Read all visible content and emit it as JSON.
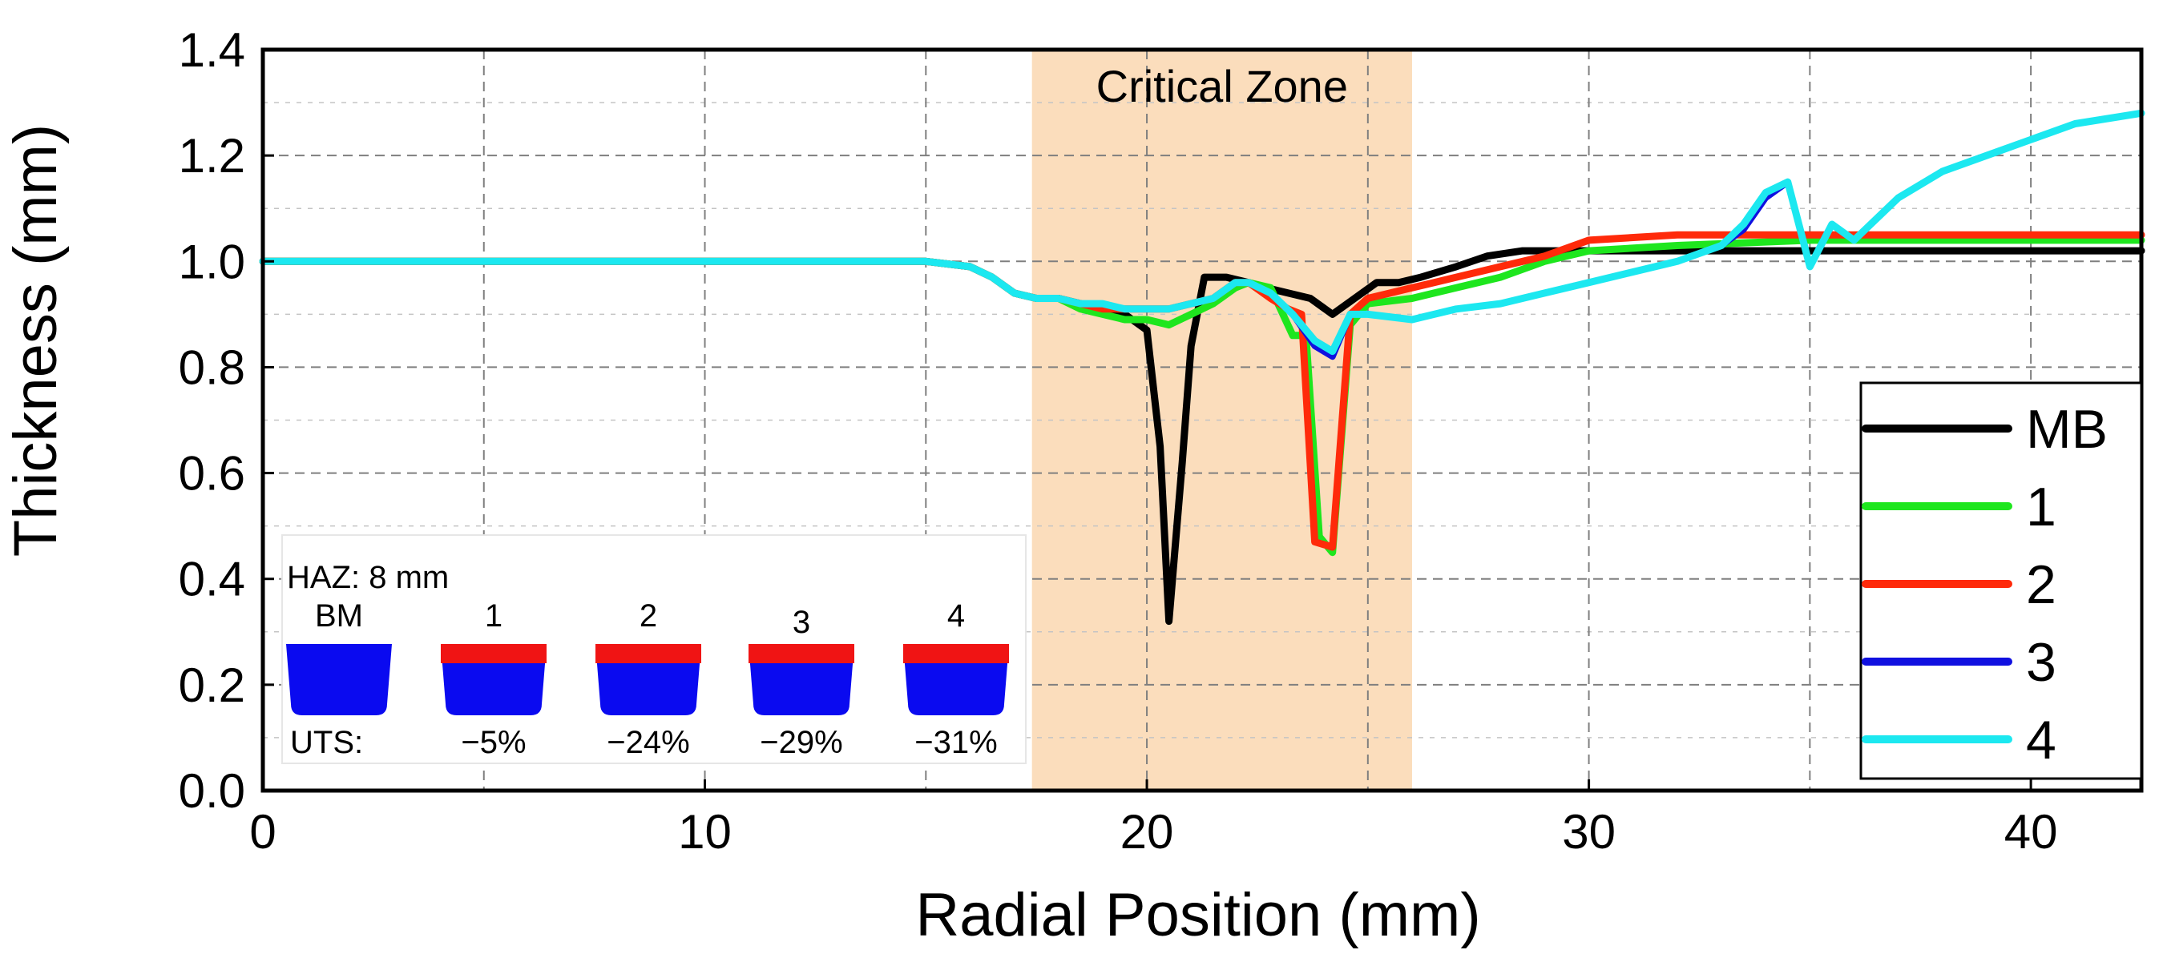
{
  "chart_data": {
    "type": "line",
    "xlabel": "Radial Position (mm)",
    "ylabel": "Thickness (mm)",
    "xlim": [
      0,
      42.5
    ],
    "ylim": [
      0,
      1.4
    ],
    "xticks": [
      0,
      10,
      20,
      30,
      40
    ],
    "yticks": [
      0.0,
      0.2,
      0.4,
      0.6,
      0.8,
      1.0,
      1.2,
      1.4
    ],
    "xtick_labels": [
      "0",
      "10",
      "20",
      "30",
      "40"
    ],
    "ytick_labels": [
      "0.0",
      "0.2",
      "0.4",
      "0.6",
      "0.8",
      "1.0",
      "1.2",
      "1.4"
    ],
    "grid": true,
    "legend_position": "bottom-right",
    "critical_zone": {
      "label": "Critical Zone",
      "x_start": 17.4,
      "x_end": 26.0,
      "color": "#fbd9b5"
    },
    "series": [
      {
        "name": "MB",
        "color": "#000000",
        "x": [
          0,
          15,
          16,
          16.5,
          17,
          17.5,
          18,
          18.5,
          19,
          19.5,
          20,
          20.3,
          20.5,
          20.8,
          21,
          21.3,
          21.8,
          22.3,
          22.7,
          23.2,
          23.7,
          24.2,
          24.7,
          25.2,
          25.7,
          26.2,
          27,
          27.7,
          28.5,
          30,
          33,
          42.5
        ],
        "y": [
          1.0,
          1.0,
          0.99,
          0.97,
          0.94,
          0.93,
          0.93,
          0.92,
          0.91,
          0.9,
          0.87,
          0.65,
          0.32,
          0.62,
          0.84,
          0.97,
          0.97,
          0.96,
          0.95,
          0.94,
          0.93,
          0.9,
          0.93,
          0.96,
          0.96,
          0.97,
          0.99,
          1.01,
          1.02,
          1.02,
          1.02,
          1.02
        ]
      },
      {
        "name": "1",
        "color": "#1ee61e",
        "x": [
          0,
          15,
          16,
          16.5,
          17,
          17.5,
          18,
          18.5,
          19,
          19.5,
          20,
          20.5,
          21,
          21.5,
          22,
          22.3,
          22.8,
          23.3,
          23.6,
          23.9,
          24.2,
          24.6,
          25,
          26,
          27,
          28,
          29,
          30,
          32,
          35,
          42.5
        ],
        "y": [
          1.0,
          1.0,
          0.99,
          0.97,
          0.94,
          0.93,
          0.93,
          0.91,
          0.9,
          0.89,
          0.89,
          0.88,
          0.9,
          0.92,
          0.95,
          0.96,
          0.95,
          0.86,
          0.86,
          0.48,
          0.45,
          0.88,
          0.92,
          0.93,
          0.95,
          0.97,
          1.0,
          1.02,
          1.03,
          1.04,
          1.04
        ]
      },
      {
        "name": "2",
        "color": "#ff2a0a",
        "x": [
          0,
          15,
          16,
          16.5,
          17,
          17.5,
          18,
          18.5,
          19,
          19.5,
          20,
          20.5,
          21,
          21.5,
          22,
          22.3,
          22.8,
          23.2,
          23.5,
          23.8,
          24.2,
          24.6,
          25,
          26,
          27,
          28,
          29,
          30,
          32,
          35,
          42.5
        ],
        "y": [
          1.0,
          1.0,
          0.99,
          0.97,
          0.94,
          0.93,
          0.93,
          0.92,
          0.91,
          0.91,
          0.91,
          0.91,
          0.92,
          0.93,
          0.96,
          0.96,
          0.93,
          0.91,
          0.9,
          0.47,
          0.46,
          0.9,
          0.93,
          0.95,
          0.97,
          0.99,
          1.01,
          1.04,
          1.05,
          1.05,
          1.05
        ]
      },
      {
        "name": "3",
        "color": "#1010e0",
        "x": [
          0,
          15,
          16,
          16.5,
          17,
          17.5,
          18,
          18.5,
          19,
          19.5,
          20,
          20.5,
          21,
          21.5,
          22,
          22.3,
          22.8,
          23.3,
          23.8,
          24.2,
          24.6,
          25,
          26,
          27,
          28,
          29,
          30,
          31,
          32,
          33,
          33.5,
          34,
          34.5,
          35,
          35.5,
          36,
          37,
          38,
          39,
          40,
          41,
          42.5
        ],
        "y": [
          1.0,
          1.0,
          0.99,
          0.97,
          0.94,
          0.93,
          0.93,
          0.92,
          0.92,
          0.91,
          0.91,
          0.91,
          0.92,
          0.93,
          0.96,
          0.96,
          0.94,
          0.9,
          0.84,
          0.82,
          0.9,
          0.9,
          0.89,
          0.91,
          0.92,
          0.94,
          0.96,
          0.98,
          1.0,
          1.03,
          1.06,
          1.12,
          1.15,
          0.99,
          1.07,
          1.04,
          1.12,
          1.17,
          1.2,
          1.23,
          1.26,
          1.28
        ]
      },
      {
        "name": "4",
        "color": "#1ce8f0",
        "x": [
          0,
          15,
          16,
          16.5,
          17,
          17.5,
          18,
          18.5,
          19,
          19.5,
          20,
          20.5,
          21,
          21.5,
          22,
          22.3,
          22.8,
          23.3,
          23.8,
          24.2,
          24.6,
          25,
          26,
          27,
          28,
          29,
          30,
          31,
          32,
          33,
          33.5,
          34,
          34.5,
          35,
          35.5,
          36,
          37,
          38,
          39,
          40,
          41,
          42.5
        ],
        "y": [
          1.0,
          1.0,
          0.99,
          0.97,
          0.94,
          0.93,
          0.93,
          0.92,
          0.92,
          0.91,
          0.91,
          0.91,
          0.92,
          0.93,
          0.96,
          0.96,
          0.94,
          0.9,
          0.85,
          0.83,
          0.9,
          0.9,
          0.89,
          0.91,
          0.92,
          0.94,
          0.96,
          0.98,
          1.0,
          1.03,
          1.07,
          1.13,
          1.15,
          0.99,
          1.07,
          1.04,
          1.12,
          1.17,
          1.2,
          1.23,
          1.26,
          1.28
        ]
      }
    ],
    "inset": {
      "haz_label": "HAZ: 8 mm",
      "uts_label": "UTS:",
      "samples": [
        {
          "name": "BM",
          "uts": ""
        },
        {
          "name": "1",
          "uts": "−5%"
        },
        {
          "name": "2",
          "uts": "−24%"
        },
        {
          "name": "3",
          "uts": "−29%"
        },
        {
          "name": "4",
          "uts": "−31%"
        }
      ],
      "body_color": "#0a0af0",
      "haz_color": "#f01414"
    }
  }
}
